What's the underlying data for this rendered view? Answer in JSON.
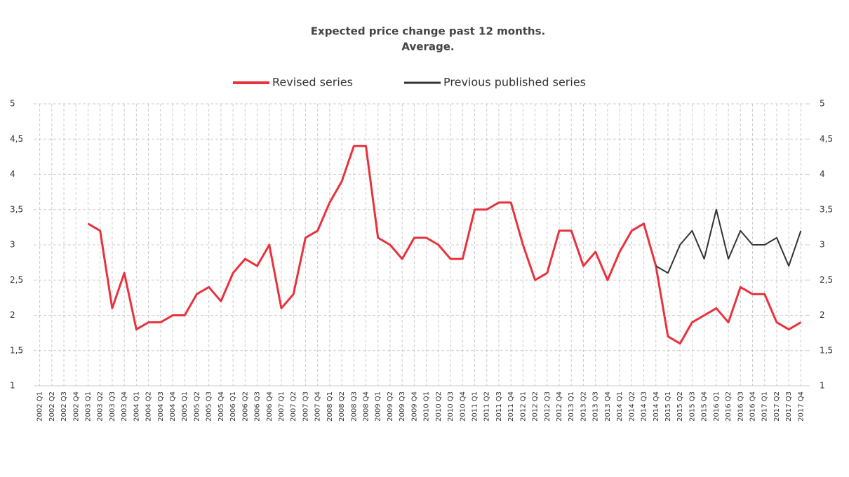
{
  "chart_data": {
    "type": "line",
    "title": [
      "Expected price change past 12 months.",
      "Average."
    ],
    "categories": [
      "2002 Q1",
      "2002 Q2",
      "2002 Q3",
      "2002 Q4",
      "2003 Q1",
      "2003 Q2",
      "2003 Q3",
      "2003 Q4",
      "2004 Q1",
      "2004 Q2",
      "2004 Q3",
      "2004 Q4",
      "2005 Q1",
      "2005 Q2",
      "2005 Q3",
      "2005 Q4",
      "2006 Q1",
      "2006 Q2",
      "2006 Q3",
      "2006 Q4",
      "2007 Q1",
      "2007 Q2",
      "2007 Q3",
      "2007 Q4",
      "2008 Q1",
      "2008 Q2",
      "2008 Q3",
      "2008 Q4",
      "2009 Q1",
      "2009 Q2",
      "2009 Q3",
      "2009 Q4",
      "2010 Q1",
      "2010 Q2",
      "2010 Q3",
      "2010 Q4",
      "2011 Q1",
      "2011 Q2",
      "2011 Q3",
      "2011 Q4",
      "2012 Q1",
      "2012 Q2",
      "2012 Q3",
      "2012 Q4",
      "2013 Q1",
      "2013 Q2",
      "2013 Q3",
      "2013 Q4",
      "2014 Q1",
      "2014 Q2",
      "2014 Q3",
      "2014 Q4",
      "2015 Q1",
      "2015 Q2",
      "2015 Q3",
      "2015 Q4",
      "2016 Q1",
      "2016 Q2",
      "2016 Q3",
      "2016 Q4",
      "2017 Q1",
      "2017 Q2",
      "2017 Q3",
      "2017 Q4"
    ],
    "series": [
      {
        "name": "Revised series",
        "color": "#e8323c",
        "width": 3,
        "values": [
          null,
          null,
          null,
          null,
          3.3,
          3.2,
          2.1,
          2.6,
          1.8,
          1.9,
          1.9,
          2.0,
          2.0,
          2.3,
          2.4,
          2.2,
          2.6,
          2.8,
          2.7,
          3.0,
          2.1,
          2.3,
          3.1,
          3.2,
          3.6,
          3.9,
          4.4,
          4.4,
          3.1,
          3.0,
          2.8,
          3.1,
          3.1,
          3.0,
          2.8,
          2.8,
          3.5,
          3.5,
          3.6,
          3.6,
          3.0,
          2.5,
          2.6,
          3.2,
          3.2,
          2.7,
          2.9,
          2.5,
          2.9,
          3.2,
          3.3,
          2.7,
          1.7,
          1.6,
          1.9,
          2.0,
          2.1,
          1.9,
          2.4,
          2.3,
          2.3,
          1.9,
          1.8,
          1.9
        ]
      },
      {
        "name": "Previous published series",
        "color": "#333333",
        "width": 2,
        "values": [
          null,
          null,
          null,
          null,
          null,
          null,
          null,
          null,
          null,
          null,
          null,
          null,
          null,
          null,
          null,
          null,
          null,
          null,
          null,
          null,
          null,
          null,
          null,
          null,
          null,
          null,
          null,
          null,
          null,
          null,
          null,
          null,
          null,
          null,
          null,
          null,
          null,
          null,
          null,
          null,
          null,
          null,
          null,
          null,
          null,
          null,
          null,
          null,
          null,
          null,
          null,
          2.7,
          2.6,
          3.0,
          3.2,
          2.8,
          3.5,
          2.8,
          3.2,
          3.0,
          3.0,
          3.1,
          2.7,
          3.2
        ]
      }
    ],
    "ylim": [
      1,
      5
    ],
    "yticks": [
      1,
      {
        "value": 1.5,
        "label": "1,5"
      },
      2,
      {
        "value": 2.5,
        "label": "2,5"
      },
      3,
      {
        "value": 3.5,
        "label": "3,5"
      },
      4,
      {
        "value": 4.5,
        "label": "4,5"
      },
      5
    ],
    "y2lim": [
      1,
      5
    ],
    "y2ticks": [
      1,
      {
        "value": 1.5,
        "label": "1,5"
      },
      2,
      {
        "value": 2.5,
        "label": "2,5"
      },
      3,
      {
        "value": 3.5,
        "label": "3,5"
      },
      4,
      {
        "value": 4.5,
        "label": "4,5"
      },
      5
    ],
    "grid": true
  }
}
